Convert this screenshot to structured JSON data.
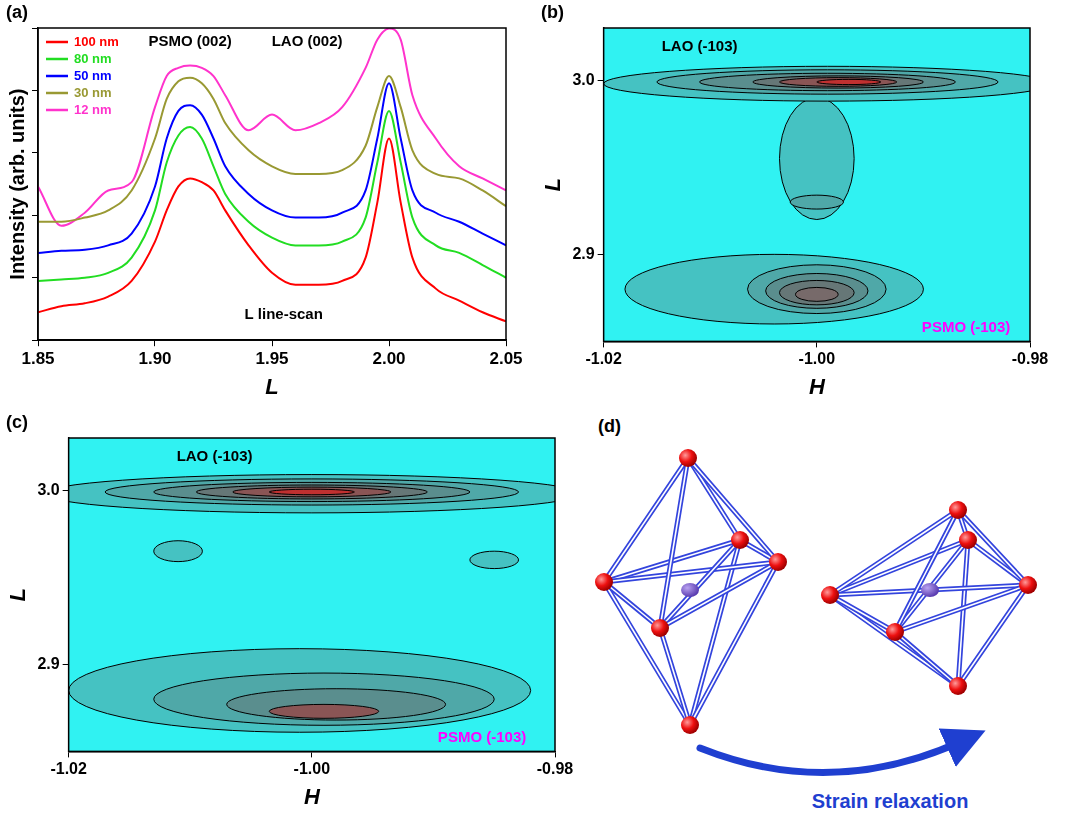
{
  "chart_data": [
    {
      "type": "line",
      "panel_label": "(a)",
      "x_label": "L",
      "y_label": "Intensity (arb. units)",
      "x": [
        1.85,
        1.86,
        1.87,
        1.88,
        1.89,
        1.9,
        1.905,
        1.91,
        1.915,
        1.92,
        1.925,
        1.93,
        1.94,
        1.95,
        1.96,
        1.97,
        1.98,
        1.99,
        1.995,
        2,
        2.005,
        2.01,
        2.02,
        2.03,
        2.04,
        2.05
      ],
      "series": [
        {
          "name": "100 nm",
          "color": "#ff0000",
          "values": [
            2.8,
            3.5,
            3.9,
            5,
            8.9,
            38,
            120,
            290,
            390,
            340,
            250,
            120,
            33,
            12,
            7.7,
            7.7,
            8.9,
            21,
            160,
            1700,
            160,
            21,
            6.7,
            4.3,
            2.8,
            2
          ]
        },
        {
          "name": "80 nm",
          "color": "#22dd22",
          "values": [
            8.9,
            9.4,
            10,
            12,
            21,
            120,
            700,
            1900,
            2600,
            1700,
            610,
            220,
            79,
            44,
            33,
            33,
            38,
            92,
            700,
            4700,
            700,
            92,
            33,
            25,
            16,
            10
          ]
        },
        {
          "name": "50 nm",
          "color": "#0000ff",
          "values": [
            25,
            27,
            28,
            33,
            51,
            290,
            1700,
            4700,
            5800,
            4100,
            1700,
            610,
            220,
            120,
            92,
            92,
            110,
            250,
            1700,
            13000,
            1700,
            250,
            110,
            79,
            51,
            33
          ]
        },
        {
          "name": "30 nm",
          "color": "#999933",
          "values": [
            79,
            79,
            92,
            120,
            250,
            1700,
            7300,
            14000,
            16000,
            13000,
            7300,
            3000,
            1100,
            610,
            460,
            460,
            530,
            1300,
            5400,
            17000,
            5400,
            1100,
            460,
            390,
            250,
            140
          ]
        },
        {
          "name": "12 nm",
          "color": "#ff33cc",
          "values": [
            290,
            68,
            110,
            250,
            340,
            5400,
            17000,
            23000,
            25000,
            23000,
            17000,
            8400,
            2300,
            4100,
            2300,
            3000,
            5400,
            23000,
            65000,
            98000,
            65000,
            8400,
            1700,
            610,
            390,
            250
          ]
        }
      ],
      "xlim": [
        1.85,
        2.05
      ],
      "xticks": [
        1.85,
        {
          "value": 1.9,
          "label": "1.90"
        },
        1.95,
        {
          "value": 2,
          "label": "2.00"
        },
        2.05
      ],
      "ylim": [
        1,
        100000
      ],
      "yticks": [
        1,
        10,
        100,
        1000,
        10000,
        100000
      ],
      "log": "y",
      "grid": false,
      "legend": "top-left",
      "tick_labels": "x",
      "annotations": [
        {
          "text": "LAO (002)",
          "x": 1.965,
          "y": 60000,
          "color": "#000000"
        },
        {
          "text": "PSMO (002)",
          "x": 1.915,
          "y": 60000,
          "color": "#000000"
        },
        {
          "text": "L line-scan",
          "x": 1.955,
          "y": 2.5,
          "color": "#000000"
        }
      ]
    },
    {
      "type": "contour",
      "panel_label": "(b)",
      "x_label": "H",
      "y_label": "L",
      "xlim": [
        -1.02,
        -0.98
      ],
      "xticks": [
        {
          "value": -1.02,
          "label": "-1.02"
        },
        {
          "value": -1,
          "label": "-1.00"
        },
        {
          "value": -0.98,
          "label": "-0.98"
        }
      ],
      "ylim": [
        2.85,
        3.03
      ],
      "yticks": [
        2.9,
        {
          "value": 3,
          "label": "3.0"
        }
      ],
      "grid": false,
      "contours": [
        {
          "h": -1.0,
          "l": 2.955,
          "dh": 0.0035,
          "dl": 0.035,
          "color": "#45c2c2"
        },
        {
          "h": -0.999,
          "l": 2.998,
          "dh": 0.021,
          "dl": 0.01,
          "color": "#45c2c2"
        },
        {
          "h": -0.999,
          "l": 2.999,
          "dh": 0.016,
          "dl": 0.007,
          "color": "#4fa8a8"
        },
        {
          "h": -0.999,
          "l": 2.999,
          "dh": 0.012,
          "dl": 0.005,
          "color": "#5a8e8e"
        },
        {
          "h": -0.998,
          "l": 2.999,
          "dh": 0.008,
          "dl": 0.0035,
          "color": "#667777"
        },
        {
          "h": -0.998,
          "l": 2.999,
          "dh": 0.0055,
          "dl": 0.0025,
          "color": "#8a5555"
        },
        {
          "h": -0.997,
          "l": 2.999,
          "dh": 0.003,
          "dl": 0.0015,
          "color": "#c03030"
        },
        {
          "h": -1.0,
          "l": 2.93,
          "dh": 0.0025,
          "dl": 0.004,
          "color": "#4fa8a8"
        },
        {
          "h": -1.004,
          "l": 2.88,
          "dh": 0.014,
          "dl": 0.02,
          "color": "#45c2c2"
        },
        {
          "h": -1.0,
          "l": 2.88,
          "dh": 0.0065,
          "dl": 0.014,
          "color": "#4fa8a8"
        },
        {
          "h": -1.0,
          "l": 2.879,
          "dh": 0.0048,
          "dl": 0.01,
          "color": "#5a8e8e"
        },
        {
          "h": -1.0,
          "l": 2.878,
          "dh": 0.0035,
          "dl": 0.007,
          "color": "#667777"
        },
        {
          "h": -1.0,
          "l": 2.877,
          "dh": 0.002,
          "dl": 0.004,
          "color": "#776a6a"
        }
      ],
      "annotations": [
        {
          "text": "LAO (-103)",
          "x": -1.011,
          "y": 3.019,
          "color": "#000000"
        },
        {
          "text": "PSMO (-103)",
          "x": -0.986,
          "y": 2.858,
          "color": "#ff00ff"
        }
      ]
    },
    {
      "type": "contour",
      "panel_label": "(c)",
      "x_label": "H",
      "y_label": "L",
      "xlim": [
        -1.02,
        -0.98
      ],
      "xticks": [
        {
          "value": -1.02,
          "label": "-1.02"
        },
        {
          "value": -1,
          "label": "-1.00"
        },
        {
          "value": -0.98,
          "label": "-0.98"
        }
      ],
      "ylim": [
        2.85,
        3.03
      ],
      "yticks": [
        2.9,
        {
          "value": 3,
          "label": "3.0"
        }
      ],
      "grid": false,
      "contours": [
        {
          "h": -1.011,
          "l": 2.965,
          "dh": 0.002,
          "dl": 0.006,
          "color": "#45c2c2"
        },
        {
          "h": -0.985,
          "l": 2.96,
          "dh": 0.002,
          "dl": 0.005,
          "color": "#45c2c2"
        },
        {
          "h": -1.0,
          "l": 2.998,
          "dh": 0.022,
          "dl": 0.011,
          "color": "#45c2c2"
        },
        {
          "h": -1.0,
          "l": 2.999,
          "dh": 0.017,
          "dl": 0.0075,
          "color": "#4fa8a8"
        },
        {
          "h": -1.0,
          "l": 2.999,
          "dh": 0.013,
          "dl": 0.0055,
          "color": "#5a8e8e"
        },
        {
          "h": -1.0,
          "l": 2.999,
          "dh": 0.0095,
          "dl": 0.004,
          "color": "#667777"
        },
        {
          "h": -1.0,
          "l": 2.999,
          "dh": 0.0065,
          "dl": 0.0028,
          "color": "#8a5555"
        },
        {
          "h": -1.0,
          "l": 2.999,
          "dh": 0.0035,
          "dl": 0.0016,
          "color": "#c03030"
        },
        {
          "h": -1.001,
          "l": 2.885,
          "dh": 0.019,
          "dl": 0.024,
          "color": "#45c2c2"
        },
        {
          "h": -0.999,
          "l": 2.88,
          "dh": 0.014,
          "dl": 0.015,
          "color": "#4fa8a8"
        },
        {
          "h": -0.998,
          "l": 2.877,
          "dh": 0.009,
          "dl": 0.009,
          "color": "#5a8e8e"
        },
        {
          "h": -0.999,
          "l": 2.873,
          "dh": 0.0045,
          "dl": 0.004,
          "color": "#8a5555"
        }
      ],
      "annotations": [
        {
          "text": "LAO (-103)",
          "x": -1.008,
          "y": 3.019,
          "color": "#000000"
        },
        {
          "text": "PSMO (-103)",
          "x": -0.986,
          "y": 2.858,
          "color": "#ff00ff"
        }
      ]
    }
  ],
  "diagram": {
    "panel_label": "(d)",
    "caption": "Strain relaxation"
  }
}
